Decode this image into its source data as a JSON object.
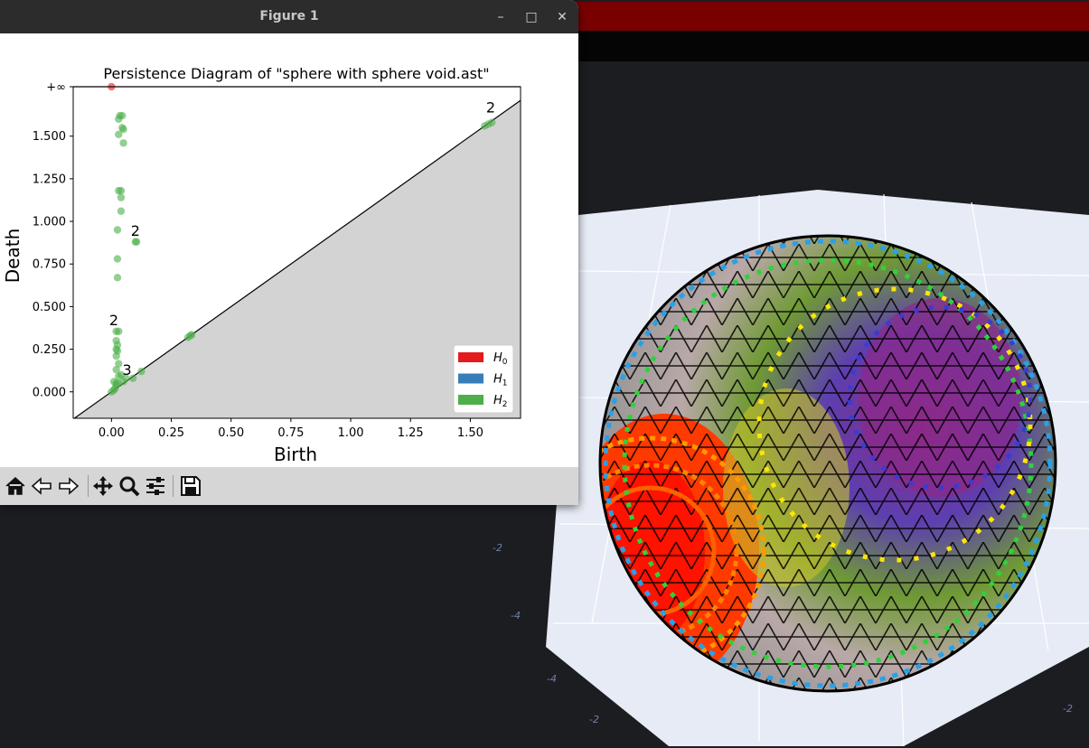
{
  "window": {
    "title": "Figure 1",
    "minimize_glyph": "–",
    "maximize_glyph": "□",
    "close_glyph": "✕"
  },
  "toolbar": {
    "buttons": [
      "home-icon",
      "back-arrow-icon",
      "forward-arrow-icon",
      "pan-icon",
      "zoom-icon",
      "configure-subplots-icon",
      "save-icon"
    ]
  },
  "chart_data": {
    "type": "scatter",
    "title": "Persistence Diagram of \"sphere with sphere void.ast\"",
    "xlabel": "Birth",
    "ylabel": "Death",
    "xlim": [
      -0.16,
      1.71
    ],
    "ylim": [
      -0.155,
      1.79
    ],
    "xticks": [
      "0.00",
      "0.25",
      "0.50",
      "0.75",
      "1.00",
      "1.25",
      "1.50"
    ],
    "xtick_values": [
      0.0,
      0.25,
      0.5,
      0.75,
      1.0,
      1.25,
      1.5
    ],
    "yticks": [
      "0.000",
      "0.250",
      "0.500",
      "0.750",
      "1.000",
      "1.250",
      "1.500",
      "+∞"
    ],
    "ytick_values": [
      0.0,
      0.25,
      0.5,
      0.75,
      1.0,
      1.25,
      1.5,
      1.79
    ],
    "infinity_label": "+∞",
    "grid": false,
    "legend_position": "bottom-right",
    "legend": [
      {
        "label": "H0",
        "sub": "0",
        "color": "#e41a1c"
      },
      {
        "label": "H1",
        "sub": "1",
        "color": "#377eb8"
      },
      {
        "label": "H2",
        "sub": "2",
        "color": "#4daf4a"
      }
    ],
    "series": [
      {
        "name": "H0",
        "color": "#e41a1c",
        "points": [
          [
            0.0,
            1.79
          ]
        ]
      },
      {
        "name": "H2",
        "color": "#4daf4a",
        "points": [
          [
            0.035,
            1.62
          ],
          [
            0.045,
            1.62
          ],
          [
            0.03,
            1.6
          ],
          [
            0.045,
            1.55
          ],
          [
            0.05,
            1.54
          ],
          [
            0.03,
            1.51
          ],
          [
            0.05,
            1.46
          ],
          [
            0.03,
            1.18
          ],
          [
            0.04,
            1.18
          ],
          [
            0.04,
            1.14
          ],
          [
            0.04,
            1.06
          ],
          [
            0.025,
            0.95
          ],
          [
            0.1,
            0.88
          ],
          [
            0.105,
            0.88
          ],
          [
            0.025,
            0.78
          ],
          [
            0.025,
            0.67
          ],
          [
            0.02,
            0.355
          ],
          [
            0.03,
            0.355
          ],
          [
            0.02,
            0.3
          ],
          [
            0.025,
            0.275
          ],
          [
            0.02,
            0.25
          ],
          [
            0.025,
            0.24
          ],
          [
            0.02,
            0.21
          ],
          [
            0.03,
            0.165
          ],
          [
            0.02,
            0.13
          ],
          [
            0.04,
            0.1
          ],
          [
            0.03,
            0.09
          ],
          [
            0.06,
            0.08
          ],
          [
            0.09,
            0.08
          ],
          [
            0.125,
            0.12
          ],
          [
            0.01,
            0.06
          ],
          [
            0.02,
            0.05
          ],
          [
            0.02,
            0.04
          ],
          [
            0.03,
            0.05
          ],
          [
            0.05,
            0.06
          ],
          [
            0.0,
            0.0
          ],
          [
            0.01,
            0.01
          ],
          [
            0.015,
            0.02
          ],
          [
            0.32,
            0.32
          ],
          [
            0.33,
            0.33
          ],
          [
            0.335,
            0.335
          ],
          [
            1.56,
            1.56
          ],
          [
            1.575,
            1.57
          ],
          [
            1.59,
            1.58
          ]
        ]
      }
    ],
    "multiplicity_labels": [
      {
        "text": "2",
        "x": 1.585,
        "y": 1.64
      },
      {
        "text": "2",
        "x": 0.1,
        "y": 0.915
      },
      {
        "text": "2",
        "x": 0.01,
        "y": 0.39
      },
      {
        "text": "3",
        "x": 0.065,
        "y": 0.1
      }
    ]
  }
}
